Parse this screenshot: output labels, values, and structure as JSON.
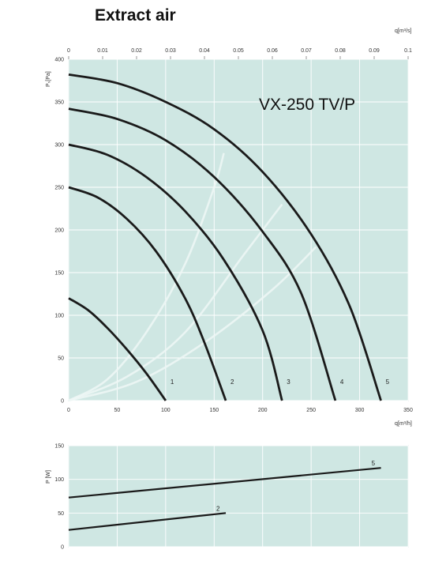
{
  "title": "Extract air",
  "chart_data": [
    {
      "type": "line",
      "model_label": "VX-250 TV/P",
      "x_label": "q[m³/h]",
      "x_top_label": "q[m³/s]",
      "y_label": "Pₛ[Pa]",
      "xlim": [
        0,
        350
      ],
      "ylim": [
        0,
        400
      ],
      "x_ticks": [
        0,
        50,
        100,
        150,
        200,
        250,
        300,
        350
      ],
      "x_top_ticks": [
        "0",
        "0.01",
        "0.02",
        "0.03",
        "0.04",
        "0.05",
        "0.06",
        "0.07",
        "0.08",
        "0.09",
        "0.1"
      ],
      "y_ticks": [
        0,
        50,
        100,
        150,
        200,
        250,
        300,
        350,
        400
      ],
      "grid": true,
      "series": [
        {
          "name": "1",
          "x": [
            0,
            20,
            40,
            60,
            80,
            100
          ],
          "y": [
            120,
            106,
            85,
            60,
            32,
            0
          ]
        },
        {
          "name": "2",
          "x": [
            0,
            30,
            60,
            90,
            120,
            140,
            162
          ],
          "y": [
            250,
            238,
            213,
            175,
            120,
            68,
            0
          ]
        },
        {
          "name": "3",
          "x": [
            0,
            40,
            80,
            120,
            160,
            200,
            220
          ],
          "y": [
            300,
            288,
            262,
            222,
            165,
            82,
            0
          ]
        },
        {
          "name": "4",
          "x": [
            0,
            50,
            100,
            150,
            200,
            240,
            275
          ],
          "y": [
            342,
            330,
            305,
            262,
            198,
            125,
            0
          ]
        },
        {
          "name": "5",
          "x": [
            0,
            50,
            100,
            150,
            200,
            250,
            290,
            322
          ],
          "y": [
            382,
            372,
            350,
            318,
            268,
            195,
            110,
            0
          ]
        }
      ],
      "system_curves": [
        {
          "x": [
            0,
            40,
            80,
            120,
            150,
            160
          ],
          "y": [
            0,
            25,
            80,
            160,
            250,
            290
          ]
        },
        {
          "x": [
            0,
            60,
            120,
            180,
            220
          ],
          "y": [
            0,
            28,
            80,
            170,
            230
          ]
        },
        {
          "x": [
            0,
            70,
            140,
            210,
            255
          ],
          "y": [
            0,
            22,
            68,
            130,
            180
          ]
        }
      ]
    },
    {
      "type": "line",
      "y_label": "P [W]",
      "xlim": [
        0,
        350
      ],
      "ylim": [
        0,
        150
      ],
      "y_ticks": [
        0,
        50,
        100,
        150
      ],
      "grid": true,
      "series": [
        {
          "name": "5",
          "x": [
            0,
            322
          ],
          "y": [
            73,
            117
          ]
        },
        {
          "name": "2",
          "x": [
            0,
            162
          ],
          "y": [
            25,
            50
          ]
        }
      ]
    }
  ]
}
